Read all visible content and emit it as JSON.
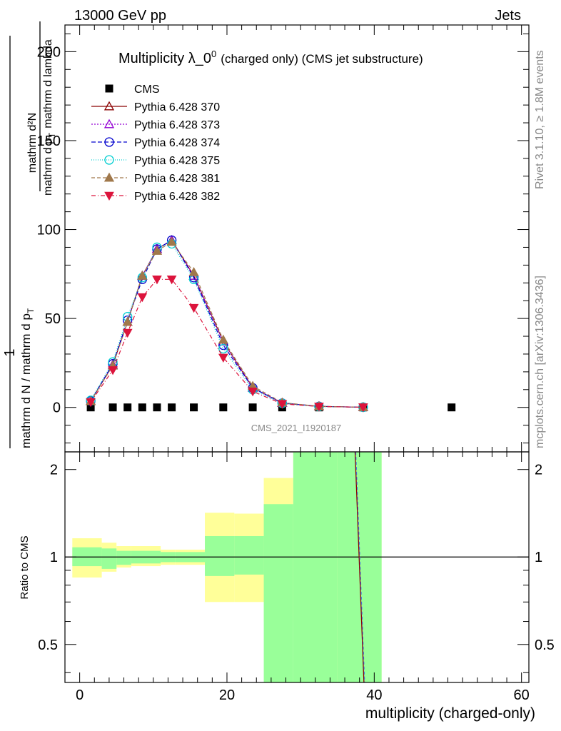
{
  "header": {
    "left": "13000 GeV pp",
    "right": "Jets"
  },
  "side_labels": {
    "rivet": "Rivet 3.1.10, ≥ 1.8M events",
    "mcplots": "mcplots.cern.ch [arXiv:1306.3436]"
  },
  "watermark": "CMS_2021_I1920187",
  "chart_data": [
    {
      "type": "scatter",
      "title_main": "Multiplicity λ_0",
      "title_sup": "0",
      "title_rest": "(charged only) (CMS jet substructure)",
      "ylabel_top": "1",
      "ylabel_num": "mathrm d²N",
      "ylabel_den": "mathrm d N / mathrm d p",
      "ylabel_den2": "mathrm d p",
      "ylabel_sub": "T",
      "ylabel_rest": "mathrm d lambda",
      "xlim": [
        -2,
        61
      ],
      "ylim": [
        -25,
        215
      ],
      "yticks": [
        0,
        50,
        100,
        150,
        200
      ],
      "legend_position": "top-left",
      "series": [
        {
          "name": "CMS",
          "marker": "square",
          "color": "#000000",
          "x": [
            1.5,
            4.5,
            6.5,
            8.5,
            10.5,
            12.5,
            15.5,
            19.5,
            23.5,
            27.5,
            32.5,
            38.5,
            50.5
          ],
          "y": [
            0,
            0,
            0,
            0,
            0,
            0,
            0,
            0,
            0,
            0,
            0,
            0,
            0
          ]
        },
        {
          "name": "Pythia 6.428 370",
          "marker": "triangle-open",
          "color": "#8b0000",
          "dash": "",
          "x": [
            1.5,
            4.5,
            6.5,
            8.5,
            10.5,
            12.5,
            15.5,
            19.5,
            23.5,
            27.5,
            32.5,
            38.5
          ],
          "y": [
            3.5,
            24,
            48,
            74,
            89,
            94,
            74,
            37,
            11,
            2.5,
            0.6,
            0.1
          ]
        },
        {
          "name": "Pythia 6.428 373",
          "marker": "triangle-open",
          "color": "#9400d3",
          "dash": "2,2",
          "x": [
            1.5,
            4.5,
            6.5,
            8.5,
            10.5,
            12.5,
            15.5,
            19.5,
            23.5,
            27.5,
            32.5,
            38.5
          ],
          "y": [
            3.5,
            24,
            48,
            74,
            89,
            94,
            74,
            37,
            11,
            2.5,
            0.6,
            0.1
          ]
        },
        {
          "name": "Pythia 6.428 374",
          "marker": "circle-open",
          "color": "#0000cd",
          "dash": "6,3",
          "x": [
            1.5,
            4.5,
            6.5,
            8.5,
            10.5,
            12.5,
            15.5,
            19.5,
            23.5,
            27.5,
            32.5,
            38.5
          ],
          "y": [
            3.6,
            24.5,
            49,
            72,
            89,
            94,
            73,
            35,
            11,
            2.4,
            0.6,
            0.1
          ]
        },
        {
          "name": "Pythia 6.428 375",
          "marker": "circle-open",
          "color": "#00ced1",
          "dash": "1,2",
          "x": [
            1.5,
            4.5,
            6.5,
            8.5,
            10.5,
            12.5,
            15.5,
            19.5,
            23.5,
            27.5,
            32.5,
            38.5
          ],
          "y": [
            4,
            25.5,
            51,
            73,
            90,
            92,
            72,
            33,
            10,
            2.3,
            0.5,
            0.1
          ]
        },
        {
          "name": "Pythia 6.428 381",
          "marker": "triangle-filled",
          "color": "#a0784b",
          "dash": "5,3",
          "x": [
            1.5,
            4.5,
            6.5,
            8.5,
            10.5,
            12.5,
            15.5,
            19.5,
            23.5,
            27.5,
            32.5,
            38.5
          ],
          "y": [
            3.5,
            23.5,
            48,
            74,
            88,
            93,
            76,
            38,
            12,
            2.7,
            0.6,
            0.1
          ]
        },
        {
          "name": "Pythia 6.428 382",
          "marker": "triangle-down-filled",
          "color": "#dc143c",
          "dash": "6,3,1,3",
          "x": [
            1.5,
            4.5,
            6.5,
            8.5,
            10.5,
            12.5,
            15.5,
            19.5,
            23.5,
            27.5,
            32.5,
            38.5
          ],
          "y": [
            3,
            21,
            42,
            62,
            72,
            72,
            56,
            28,
            9,
            2,
            0.5,
            0.1
          ]
        }
      ]
    },
    {
      "type": "area",
      "ylabel": "Ratio to CMS",
      "xlabel": "multiplicity (charged-only)",
      "xlim": [
        -2,
        61
      ],
      "ylim": [
        0.37,
        2.3
      ],
      "y_scale": "log",
      "xticks": [
        0,
        20,
        40,
        60
      ],
      "yticks": [
        0.5,
        1,
        2
      ],
      "bins": [
        -1,
        3,
        5,
        7,
        9,
        11,
        13,
        17,
        21,
        25,
        29,
        35,
        41
      ],
      "green_band": {
        "lower": [
          0.93,
          0.91,
          0.94,
          0.95,
          0.95,
          0.96,
          0.96,
          0.86,
          0.87,
          0.37,
          0.37,
          0.37
        ],
        "upper": [
          1.08,
          1.07,
          1.05,
          1.05,
          1.05,
          1.04,
          1.04,
          1.18,
          1.18,
          1.52,
          2.3,
          2.3
        ]
      },
      "yellow_band": {
        "lower": [
          0.85,
          0.89,
          0.92,
          0.93,
          0.93,
          0.94,
          0.94,
          0.7,
          0.7,
          0.6,
          0.37,
          0.37
        ],
        "upper": [
          1.16,
          1.12,
          1.09,
          1.09,
          1.09,
          1.06,
          1.06,
          1.42,
          1.41,
          1.87,
          2.3,
          2.3
        ]
      },
      "reference": 1,
      "mc_ratio_line": {
        "color": "#8b0000",
        "x": [
          37.4,
          38.6
        ],
        "y": [
          2.3,
          0.37
        ]
      }
    }
  ]
}
